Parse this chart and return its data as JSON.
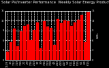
{
  "title": "Weekly Solar Energy Production",
  "subtitle": "Solar PV/Inverter Performance",
  "bar_color": "#FF0000",
  "bg_color": "#000000",
  "plot_bg_color": "#000000",
  "grid_color": "#FFFFFF",
  "text_color": "#FFFFFF",
  "weeks": [
    "12/29",
    "1/5",
    "1/12",
    "1/19",
    "1/26",
    "2/2",
    "2/9",
    "2/16",
    "2/23",
    "3/2",
    "3/9",
    "3/16",
    "3/23",
    "3/30",
    "4/6",
    "4/13",
    "4/20",
    "4/27",
    "5/4",
    "5/11",
    "5/18",
    "5/25",
    "6/1",
    "6/8",
    "6/15"
  ],
  "values": [
    2.5,
    5.5,
    9.5,
    4.2,
    8.8,
    10.5,
    10.8,
    6.0,
    9.2,
    11.5,
    3.5,
    11.8,
    10.2,
    9.8,
    4.5,
    12.5,
    11.2,
    12.0,
    11.8,
    10.5,
    11.5,
    12.2,
    13.8,
    5.5,
    14.5
  ],
  "ylim": [
    0,
    15
  ],
  "yticks": [
    0,
    3,
    6,
    9,
    12,
    15
  ],
  "ylabel": "kWh",
  "title_fontsize": 3.8,
  "label_fontsize": 2.8,
  "tick_fontsize": 2.5
}
